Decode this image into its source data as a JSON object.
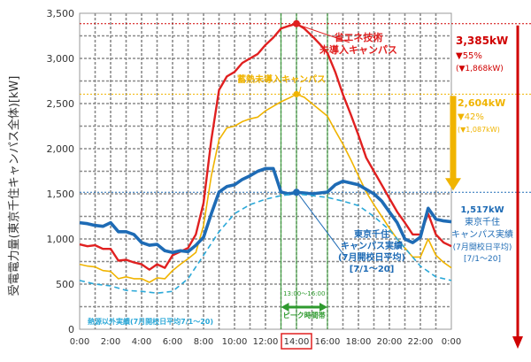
{
  "chart_data": {
    "type": "line",
    "ylabel": "受電電力量(東京千住キャンパス全体)[kW]",
    "xlabel": "",
    "ylim": [
      0,
      3500
    ],
    "yticks": [
      0,
      500,
      1000,
      1500,
      2000,
      2500,
      3000,
      3500
    ],
    "ytick_labels": [
      "0",
      "500",
      "1,000",
      "1,500",
      "2,000",
      "2,500",
      "3,000",
      "3,500"
    ],
    "x_range": [
      0,
      24
    ],
    "xticks": [
      0,
      2,
      4,
      6,
      8,
      10,
      12,
      14,
      16,
      18,
      20,
      22,
      24
    ],
    "xtick_labels": [
      "0:00",
      "2:00",
      "4:00",
      "6:00",
      "8:00",
      "10:00",
      "12:00",
      "14:00",
      "16:00",
      "18:00",
      "20:00",
      "22:00",
      "0:00"
    ],
    "highlight_tick": "14:00",
    "grid": true,
    "peak_band": {
      "start": 13,
      "end": 16,
      "label_time": "13:00～16:00",
      "label": "ピーク時間帯"
    },
    "series": [
      {
        "name": "省エネ技術未導入キャンパス",
        "color": "#e02020",
        "x": [
          0,
          0.5,
          1,
          1.5,
          2,
          2.5,
          3,
          3.5,
          4,
          4.5,
          5,
          5.5,
          6,
          6.5,
          7,
          7.5,
          8,
          8.5,
          9,
          9.5,
          10,
          10.5,
          11,
          11.5,
          12,
          12.5,
          13,
          13.5,
          14,
          14.5,
          15,
          15.5,
          16,
          16.5,
          17,
          17.5,
          18,
          18.5,
          19,
          19.5,
          20,
          20.5,
          21,
          21.5,
          22,
          22.5,
          23,
          23.5,
          24
        ],
        "values": [
          940,
          920,
          930,
          890,
          890,
          760,
          770,
          740,
          720,
          660,
          720,
          680,
          820,
          860,
          900,
          1050,
          1400,
          2100,
          2650,
          2800,
          2850,
          2950,
          3000,
          3050,
          3150,
          3230,
          3330,
          3360,
          3385,
          3330,
          3250,
          3160,
          3060,
          2850,
          2600,
          2380,
          2150,
          1900,
          1750,
          1600,
          1450,
          1300,
          1180,
          1050,
          1050,
          1280,
          1050,
          960,
          920
        ]
      },
      {
        "name": "蓄熱未導入キャンパス",
        "color": "#f0b400",
        "x": [
          0,
          0.5,
          1,
          1.5,
          2,
          2.5,
          3,
          3.5,
          4,
          4.5,
          5,
          5.5,
          6,
          6.5,
          7,
          7.5,
          8,
          8.5,
          9,
          9.5,
          10,
          10.5,
          11,
          11.5,
          12,
          12.5,
          13,
          13.5,
          14,
          14.5,
          15,
          15.5,
          16,
          16.5,
          17,
          17.5,
          18,
          18.5,
          19,
          19.5,
          20,
          20.5,
          21,
          21.5,
          22,
          22.5,
          23,
          23.5,
          24
        ],
        "values": [
          720,
          700,
          690,
          650,
          640,
          560,
          580,
          560,
          560,
          520,
          570,
          560,
          650,
          720,
          780,
          850,
          1150,
          1700,
          2100,
          2230,
          2250,
          2300,
          2330,
          2350,
          2420,
          2470,
          2520,
          2560,
          2604,
          2570,
          2500,
          2430,
          2360,
          2200,
          2050,
          1880,
          1700,
          1520,
          1380,
          1250,
          1120,
          1000,
          900,
          800,
          800,
          1000,
          820,
          740,
          680
        ]
      },
      {
        "name": "東京千住キャンパス実績(7月開校日平均)",
        "color": "#1e6bb5",
        "x": [
          0,
          0.5,
          1,
          1.5,
          2,
          2.5,
          3,
          3.5,
          4,
          4.5,
          5,
          5.5,
          6,
          6.5,
          7,
          7.5,
          8,
          8.5,
          9,
          9.5,
          10,
          10.5,
          11,
          11.5,
          12,
          12.5,
          13,
          13.5,
          14,
          14.5,
          15,
          15.5,
          16,
          16.5,
          17,
          17.5,
          18,
          18.5,
          19,
          19.5,
          20,
          20.5,
          21,
          21.5,
          22,
          22.5,
          23,
          23.5,
          24
        ],
        "values": [
          1180,
          1170,
          1150,
          1140,
          1180,
          1080,
          1080,
          1050,
          960,
          930,
          940,
          870,
          850,
          870,
          860,
          930,
          1020,
          1280,
          1520,
          1580,
          1600,
          1660,
          1700,
          1750,
          1780,
          1780,
          1520,
          1500,
          1517,
          1510,
          1500,
          1510,
          1520,
          1600,
          1640,
          1620,
          1600,
          1550,
          1500,
          1420,
          1300,
          1180,
          1000,
          960,
          1020,
          1340,
          1220,
          1200,
          1190
        ]
      },
      {
        "name": "熱源以外実績(7月開校日平均7/1～20)",
        "color": "#2aa8d8",
        "dashed": true,
        "x": [
          0,
          1,
          2,
          3,
          4,
          5,
          6,
          7,
          8,
          9,
          10,
          11,
          12,
          13,
          14,
          15,
          16,
          17,
          18,
          19,
          20,
          21,
          22,
          23,
          24
        ],
        "values": [
          540,
          500,
          480,
          430,
          420,
          400,
          420,
          560,
          820,
          1080,
          1280,
          1380,
          1440,
          1480,
          1500,
          1480,
          1460,
          1420,
          1370,
          1250,
          1100,
          900,
          700,
          580,
          540
        ]
      }
    ],
    "annotations": [
      {
        "label_lines": [
          "省エネ技術",
          "未導入キャンパス"
        ],
        "color": "#e02020"
      },
      {
        "label_lines": [
          "蓄熱未導入キャンパス"
        ],
        "color": "#f0b400"
      },
      {
        "label_lines": [
          "東京千住",
          "キャンパス実績",
          "(7月開校日平均)",
          "[7/1～20]"
        ],
        "color": "#1e6bb5"
      },
      {
        "label_lines": [
          "熱源以外実績(7月開校日平均7/1～20)"
        ],
        "color": "#2aa8d8"
      }
    ],
    "right_panel": [
      {
        "value": 3385,
        "lines": [
          "3,385kW",
          "▼55%",
          "(▼1,868kW)"
        ],
        "color": "#d00000"
      },
      {
        "value": 2604,
        "lines": [
          "2,604kW",
          "▼42%",
          "(▼1,087kW)"
        ],
        "color": "#f0b400"
      },
      {
        "value": 1517,
        "lines": [
          "1,517kW",
          "東京千住",
          "キャンパス実績",
          "(7月開校日平均)",
          "[7/1～20]"
        ],
        "color": "#1e6bb5"
      }
    ]
  }
}
